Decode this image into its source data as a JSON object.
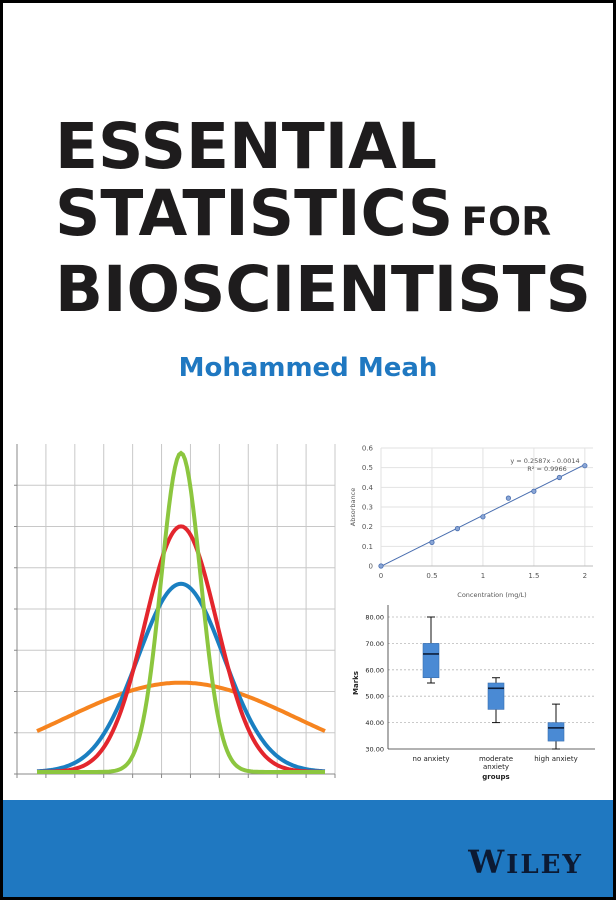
{
  "book": {
    "title_line1": "ESSENTIAL",
    "title_line2": "STATISTICS",
    "title_line2_small": "FOR",
    "title_line3": "BIOSCIENTISTS",
    "author": "Mohammed Meah",
    "publisher_initial": "W",
    "publisher_rest": "ILEY"
  },
  "colors": {
    "title": "#1e1c1d",
    "author": "#1f78c1",
    "band": "#1f78c1",
    "publisher": "#0c1a33",
    "curve_green": "#8cc63f",
    "curve_red": "#e3262d",
    "curve_blue": "#1a7fc1",
    "curve_orange": "#f6841f",
    "box_fill": "#4a8ad4"
  },
  "chart_data": [
    {
      "type": "line",
      "title": "",
      "xlabel": "",
      "ylabel": "",
      "grid": true,
      "legend": "none",
      "series": [
        {
          "name": "green (narrow)",
          "color": "#8cc63f",
          "mean": 0,
          "peak_relative": 1.0,
          "sd_relative": 0.55
        },
        {
          "name": "red",
          "color": "#e3262d",
          "mean": 0,
          "peak_relative": 0.77,
          "sd_relative": 1.0
        },
        {
          "name": "blue",
          "color": "#1a7fc1",
          "mean": 0,
          "peak_relative": 0.59,
          "sd_relative": 1.2
        },
        {
          "name": "orange (wide)",
          "color": "#f6841f",
          "mean": 0,
          "peak_relative": 0.28,
          "sd_relative": 3.2
        }
      ],
      "x_gridlines": 11,
      "y_gridlines": 8
    },
    {
      "type": "scatter",
      "title": "",
      "xlabel": "Concentration (mg/L)",
      "ylabel": "Absorbance",
      "x": [
        0,
        0.5,
        0.75,
        1.0,
        1.25,
        1.5,
        1.75,
        2.0
      ],
      "y": [
        0.0,
        0.12,
        0.19,
        0.25,
        0.345,
        0.38,
        0.45,
        0.51
      ],
      "xlim": [
        0,
        2
      ],
      "ylim": [
        0,
        0.6
      ],
      "x_ticks": [
        "0",
        "0.5",
        "1",
        "1.5",
        "2"
      ],
      "y_ticks": [
        "0",
        "0.1",
        "0.2",
        "0.3",
        "0.4",
        "0.5",
        "0.6"
      ],
      "trendline": {
        "equation": "y = 0.2587x - 0.0014",
        "r2": "R² = 0.9966",
        "slope": 0.2587,
        "intercept": -0.0014
      },
      "grid": true
    },
    {
      "type": "box",
      "title": "",
      "xlabel": "groups",
      "ylabel": "Marks",
      "categories": [
        "no anxiety",
        "moderate anxiety",
        "high anxiety"
      ],
      "category_labels": [
        [
          "no anxiety"
        ],
        [
          "moderate",
          "anxiety"
        ],
        [
          "high anxiety"
        ]
      ],
      "series": [
        {
          "name": "no anxiety",
          "min": 55,
          "q1": 57,
          "median": 66,
          "q3": 70,
          "max": 80
        },
        {
          "name": "moderate anxiety",
          "min": 40,
          "q1": 45,
          "median": 53,
          "q3": 55,
          "max": 57
        },
        {
          "name": "high anxiety",
          "min": 30,
          "q1": 33,
          "median": 38,
          "q3": 40,
          "max": 47
        }
      ],
      "ylim": [
        30,
        80
      ],
      "y_ticks": [
        "30.00",
        "40.00",
        "50.00",
        "60.00",
        "70.00",
        "80.00"
      ],
      "grid": "dashed-horizontal"
    }
  ]
}
